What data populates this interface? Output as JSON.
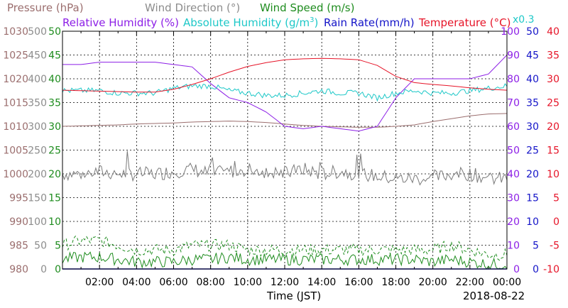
{
  "chart_data": {
    "type": "line",
    "x": [
      "00:00",
      "01:00",
      "02:00",
      "03:00",
      "04:00",
      "05:00",
      "06:00",
      "07:00",
      "08:00",
      "09:00",
      "10:00",
      "11:00",
      "12:00",
      "13:00",
      "14:00",
      "15:00",
      "16:00",
      "17:00",
      "18:00",
      "19:00",
      "20:00",
      "21:00",
      "22:00",
      "23:00",
      "24:00"
    ],
    "xticks": [
      "02:00",
      "04:00",
      "06:00",
      "08:00",
      "10:00",
      "12:00",
      "14:00",
      "16:00",
      "18:00",
      "20:00",
      "22:00",
      "00:00"
    ],
    "xlabel": "Time (JST)",
    "date": "2018-08-22",
    "header": {
      "row1": [
        {
          "text": "Pressure (hPa)",
          "color": "#9b6e6e"
        },
        {
          "text": "Wind Direction (°)",
          "color": "#8c8c8c"
        },
        {
          "text": "Wind Speed (m/s)",
          "color": "#1e8c1e"
        }
      ],
      "row2": [
        {
          "text": "Relative Humidity (%)",
          "color": "#8c1ee6"
        },
        {
          "text": "Absolute Humidity (g/m",
          "color": "#1ec8c8",
          "sup": "3",
          "close": ")"
        },
        {
          "text": "Rain Rate(mm/h)",
          "color": "#1414c8"
        },
        {
          "text": "Temperature (°C)",
          "color": "#e61428"
        }
      ],
      "note": {
        "text": "x0.3",
        "color": "#1ec8c8"
      }
    },
    "axes": [
      {
        "name": "Pressure (hPa)",
        "side": "left",
        "color": "#9b6e6e",
        "ticks": [
          "1030",
          "1025",
          "1020",
          "1015",
          "1010",
          "1005",
          "1000",
          "995",
          "990",
          "985",
          "980"
        ],
        "ylim": [
          980,
          1030
        ]
      },
      {
        "name": "Wind Direction (°)",
        "side": "left",
        "color": "#8c8c8c",
        "ticks": [
          "500",
          "450",
          "400",
          "350",
          "300",
          "250",
          "200",
          "150",
          "100",
          "50",
          "0"
        ],
        "ylim": [
          0,
          500
        ]
      },
      {
        "name": "Wind Speed (m/s)",
        "side": "left",
        "color": "#1e8c1e",
        "ticks": [
          "50",
          "45",
          "40",
          "35",
          "30",
          "25",
          "20",
          "15",
          "10",
          "5",
          "0"
        ],
        "ylim": [
          0,
          50
        ]
      },
      {
        "name": "Relative Humidity (%)",
        "side": "right",
        "color": "#8c1ee6",
        "ticks": [
          "100",
          "90",
          "80",
          "70",
          "60",
          "50",
          "40",
          "30",
          "20",
          "10",
          "0"
        ],
        "ylim": [
          0,
          100
        ]
      },
      {
        "name": "Rain Rate(mm/h)",
        "side": "right",
        "color": "#1414c8",
        "ticks": [
          "50",
          "45",
          "40",
          "35",
          "30",
          "25",
          "20",
          "15",
          "10",
          "5",
          "0"
        ],
        "ylim": [
          0,
          50
        ]
      },
      {
        "name": "Temperature (°C)",
        "side": "right",
        "color": "#e61428",
        "ticks": [
          "40",
          "35",
          "30",
          "25",
          "20",
          "15",
          "10",
          "5",
          "0",
          "-5",
          "-10"
        ],
        "ylim": [
          -10,
          40
        ]
      }
    ],
    "grid": true,
    "series": [
      {
        "name": "Pressure (hPa)",
        "axis": 0,
        "color": "#9b6e6e",
        "style": "solid",
        "values": [
          1010.0,
          1010.1,
          1010.2,
          1010.3,
          1010.5,
          1010.6,
          1010.7,
          1010.9,
          1011.0,
          1011.1,
          1011.0,
          1010.8,
          1010.5,
          1010.2,
          1010.0,
          1009.9,
          1009.8,
          1009.8,
          1010.0,
          1010.3,
          1011.0,
          1011.6,
          1012.2,
          1012.6,
          1012.7
        ]
      },
      {
        "name": "Wind Direction (°)",
        "axis": 1,
        "color": "#7a7a7a",
        "style": "solid",
        "noisy": true,
        "values": [
          200,
          200,
          205,
          200,
          200,
          200,
          205,
          210,
          200,
          205,
          210,
          205,
          200,
          210,
          200,
          205,
          200,
          195,
          190,
          190,
          190,
          200,
          200,
          190,
          190
        ]
      },
      {
        "name": "Wind Speed (m/s) max",
        "axis": 2,
        "color": "#1e8c1e",
        "style": "dashed",
        "noisy": true,
        "values": [
          5,
          6,
          6,
          5,
          4,
          4,
          4,
          5,
          5,
          5,
          4,
          4,
          4,
          4,
          4,
          4,
          4,
          4,
          4,
          4,
          4,
          5,
          4,
          3,
          3
        ]
      },
      {
        "name": "Wind Speed (m/s)",
        "axis": 2,
        "color": "#1e8c1e",
        "style": "solid",
        "noisy": true,
        "values": [
          2,
          2.5,
          2.5,
          2,
          1.5,
          1.5,
          1.5,
          2,
          2,
          2.5,
          2,
          2,
          2,
          2,
          2,
          2,
          2,
          2,
          2,
          2,
          1.5,
          2,
          1.5,
          1,
          1
        ]
      },
      {
        "name": "Relative Humidity (%)",
        "axis": 3,
        "color": "#8c1ee6",
        "style": "solid",
        "values": [
          86,
          86,
          87,
          87,
          87,
          87,
          86,
          85,
          78,
          72,
          70,
          66,
          60,
          59,
          60,
          59,
          58,
          60,
          72,
          80,
          80,
          80,
          80,
          82,
          90
        ]
      },
      {
        "name": "Absolute Humidity (g/m3)",
        "axis": 4,
        "color": "#1ec8c8",
        "style": "solid",
        "noisy": true,
        "values": [
          37.5,
          37.5,
          37.5,
          37.0,
          37.0,
          37.0,
          38.0,
          38.5,
          38.5,
          37.5,
          37.0,
          36.5,
          36.5,
          37.0,
          37.5,
          37.0,
          37.0,
          36.0,
          37.0,
          37.5,
          37.0,
          37.0,
          37.5,
          38.0,
          38.5
        ]
      },
      {
        "name": "Rain Rate(mm/h)",
        "axis": 4,
        "color": "#1414c8",
        "style": "solid",
        "values": [
          0,
          0,
          0,
          0,
          0,
          0,
          0,
          0,
          0,
          0,
          0,
          0,
          0,
          0,
          0,
          0,
          0,
          0,
          0,
          0,
          0,
          0,
          0,
          0,
          0
        ]
      },
      {
        "name": "Temperature (°C)",
        "axis": 5,
        "color": "#e61428",
        "style": "solid",
        "values": [
          27.6,
          27.5,
          27.4,
          27.3,
          27.2,
          27.2,
          27.8,
          28.8,
          30.0,
          31.4,
          32.6,
          33.4,
          34.0,
          34.2,
          34.3,
          34.2,
          34.0,
          32.8,
          30.5,
          29.2,
          28.8,
          28.5,
          28.1,
          27.8,
          27.6
        ]
      }
    ]
  }
}
